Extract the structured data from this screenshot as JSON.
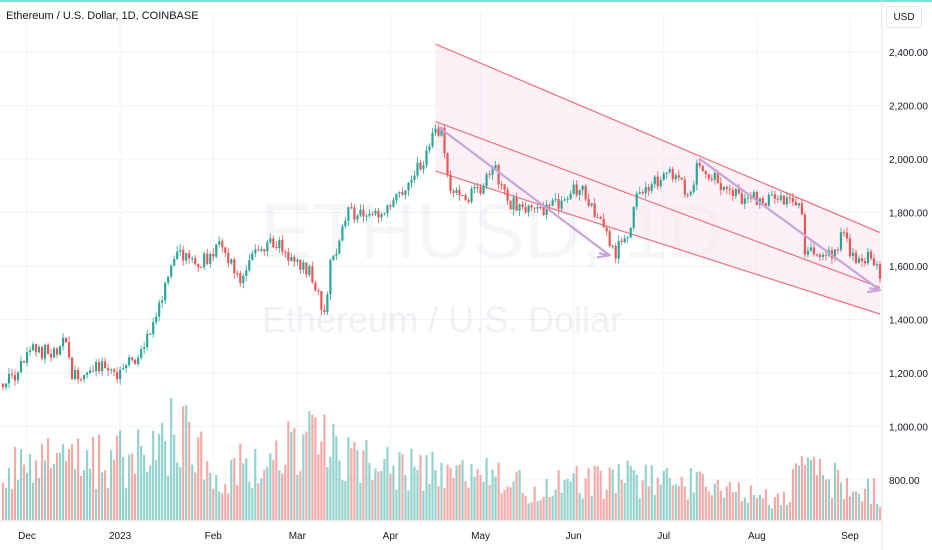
{
  "header": {
    "symbol_title": "Ethereum / U.S. Dollar, 1D, COINBASE",
    "currency_button": "USD"
  },
  "watermark": {
    "ticker": "ETHUSD, 1D",
    "name": "Ethereum / U.S. Dollar"
  },
  "colors": {
    "up": "#26a69a",
    "down": "#ef5350",
    "channel_line": "#f0707c",
    "channel_fill": "#fce4ef",
    "inner_arrow": "#c9a4dc",
    "top_accent": "#7fe3d4"
  },
  "chart_data": {
    "type": "candlestick",
    "x_tick_labels": [
      "Dec",
      "2023",
      "Feb",
      "Mar",
      "Apr",
      "May",
      "Jun",
      "Jul",
      "Aug",
      "Sep"
    ],
    "y_tick_labels": [
      "2,400.00",
      "2,200.00",
      "2,000.00",
      "1,800.00",
      "1,600.00",
      "1,400.00",
      "1,200.00",
      "1,000.00",
      "800.00"
    ],
    "y_tick_values": [
      2400,
      2200,
      2000,
      1800,
      1600,
      1400,
      1200,
      1000,
      800
    ],
    "price_range": [
      650,
      2550
    ],
    "grid": true,
    "tick_dates": [
      "2022-12-01",
      "2023-01-01",
      "2023-02-01",
      "2023-03-01",
      "2023-04-01",
      "2023-05-01",
      "2023-06-01",
      "2023-07-01",
      "2023-08-01",
      "2023-09-01"
    ],
    "price_path": [
      [
        "2022-11-23",
        1160
      ],
      [
        "2022-11-28",
        1200
      ],
      [
        "2022-12-02",
        1280
      ],
      [
        "2022-12-10",
        1280
      ],
      [
        "2022-12-14",
        1320
      ],
      [
        "2022-12-16",
        1180
      ],
      [
        "2022-12-25",
        1220
      ],
      [
        "2023-01-01",
        1200
      ],
      [
        "2023-01-08",
        1280
      ],
      [
        "2023-01-14",
        1450
      ],
      [
        "2023-01-20",
        1650
      ],
      [
        "2023-01-27",
        1600
      ],
      [
        "2023-02-03",
        1670
      ],
      [
        "2023-02-10",
        1560
      ],
      [
        "2023-02-15",
        1650
      ],
      [
        "2023-02-20",
        1700
      ],
      [
        "2023-02-27",
        1630
      ],
      [
        "2023-03-05",
        1580
      ],
      [
        "2023-03-10",
        1430
      ],
      [
        "2023-03-12",
        1600
      ],
      [
        "2023-03-18",
        1800
      ],
      [
        "2023-03-25",
        1780
      ],
      [
        "2023-03-31",
        1800
      ],
      [
        "2023-04-05",
        1880
      ],
      [
        "2023-04-12",
        2000
      ],
      [
        "2023-04-16",
        2100
      ],
      [
        "2023-04-18",
        2090
      ],
      [
        "2023-04-21",
        1880
      ],
      [
        "2023-04-26",
        1860
      ],
      [
        "2023-05-01",
        1880
      ],
      [
        "2023-05-05",
        1980
      ],
      [
        "2023-05-10",
        1840
      ],
      [
        "2023-05-18",
        1800
      ],
      [
        "2023-05-25",
        1820
      ],
      [
        "2023-05-31",
        1880
      ],
      [
        "2023-06-04",
        1900
      ],
      [
        "2023-06-10",
        1760
      ],
      [
        "2023-06-15",
        1650
      ],
      [
        "2023-06-20",
        1740
      ],
      [
        "2023-06-22",
        1880
      ],
      [
        "2023-06-30",
        1930
      ],
      [
        "2023-07-05",
        1950
      ],
      [
        "2023-07-09",
        1860
      ],
      [
        "2023-07-13",
        2000
      ],
      [
        "2023-07-16",
        1940
      ],
      [
        "2023-07-25",
        1860
      ],
      [
        "2023-08-05",
        1840
      ],
      [
        "2023-08-12",
        1850
      ],
      [
        "2023-08-16",
        1820
      ],
      [
        "2023-08-17",
        1660
      ],
      [
        "2023-08-22",
        1650
      ],
      [
        "2023-08-28",
        1640
      ],
      [
        "2023-08-29",
        1720
      ],
      [
        "2023-09-02",
        1640
      ],
      [
        "2023-09-09",
        1630
      ],
      [
        "2023-09-11",
        1560
      ]
    ],
    "volume_level_path": [
      [
        "2022-11-23",
        0.5
      ],
      [
        "2022-12-15",
        0.55
      ],
      [
        "2023-01-10",
        0.6
      ],
      [
        "2023-01-20",
        0.85
      ],
      [
        "2023-02-05",
        0.45
      ],
      [
        "2023-03-10",
        0.75
      ],
      [
        "2023-04-05",
        0.45
      ],
      [
        "2023-04-20",
        0.5
      ],
      [
        "2023-05-20",
        0.3
      ],
      [
        "2023-06-15",
        0.4
      ],
      [
        "2023-07-10",
        0.35
      ],
      [
        "2023-08-10",
        0.2
      ],
      [
        "2023-08-17",
        0.5
      ],
      [
        "2023-09-11",
        0.25
      ]
    ],
    "volume_scale_note": "",
    "drawings": {
      "channel_upper": [
        [
          "2023-04-16",
          2430
        ],
        [
          "2023-09-11",
          1725
        ]
      ],
      "channel_mid": [
        [
          "2023-04-16",
          2140
        ],
        [
          "2023-09-11",
          1520
        ]
      ],
      "channel_lower": [
        [
          "2023-04-16",
          1955
        ],
        [
          "2023-09-11",
          1420
        ]
      ],
      "arrow_1": [
        [
          "2023-04-17",
          2120
        ],
        [
          "2023-06-13",
          1640
        ]
      ],
      "arrow_2": [
        [
          "2023-07-13",
          2000
        ],
        [
          "2023-09-11",
          1510
        ]
      ]
    }
  }
}
